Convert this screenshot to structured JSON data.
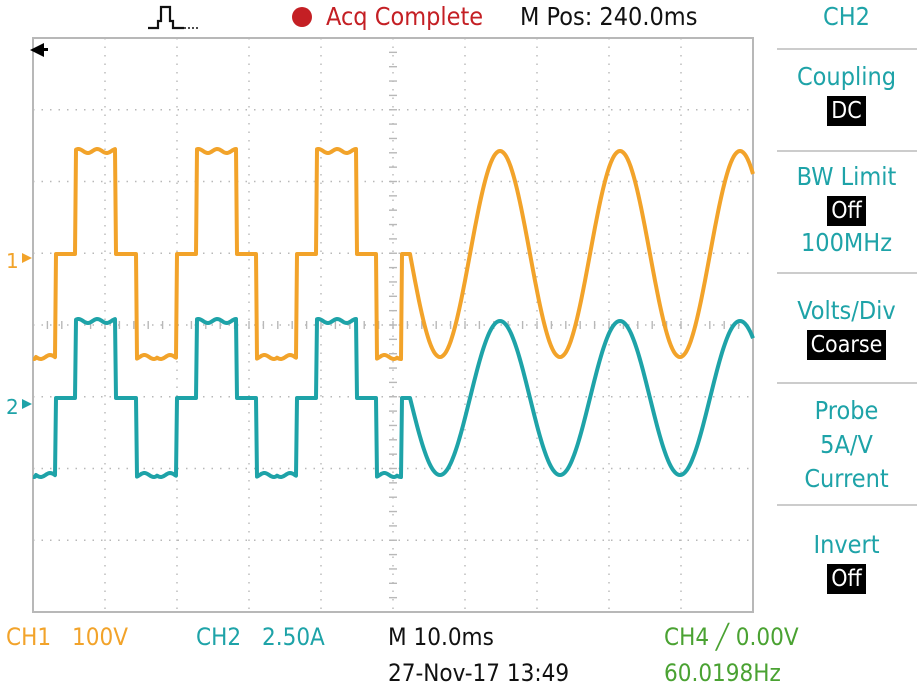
{
  "top": {
    "acq_status": "Acq Complete",
    "m_pos": "M Pos: 240.0ms",
    "trigger_icon": "trigger-pulse-icon",
    "status_color": "#c41f24"
  },
  "markers": {
    "ch1": "1",
    "ch2": "2"
  },
  "menu": {
    "title": "CH2",
    "coupling": {
      "label": "Coupling",
      "value": "DC"
    },
    "bw_limit": {
      "label": "BW Limit",
      "value": "Off",
      "sub": "100MHz"
    },
    "volts_div": {
      "label": "Volts/Div",
      "value": "Coarse"
    },
    "probe": {
      "label": "Probe",
      "line2": "5A/V",
      "line3": "Current"
    },
    "invert": {
      "label": "Invert",
      "value": "Off"
    }
  },
  "bottom": {
    "ch1_label": "CH1",
    "ch1_scale": "100V",
    "ch2_label": "CH2",
    "ch2_scale": "2.50A",
    "timebase": "M 10.0ms",
    "date": "27-Nov-17 13:49",
    "ch4_trigger": "CH4 ╱ 0.00V",
    "frequency": "60.0198Hz"
  },
  "colors": {
    "ch1": "#f2a32a",
    "ch2": "#1ea3a8",
    "ch4": "#4aa232",
    "grid": "#b8b8b8"
  }
}
